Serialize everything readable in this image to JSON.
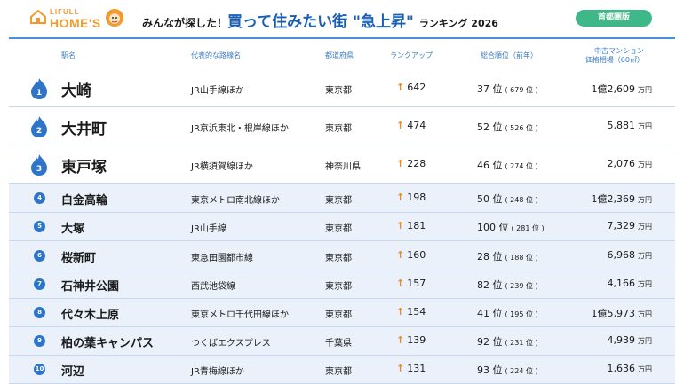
{
  "header": {
    "logo_top": "LIFULL",
    "logo_main": "HOME'S",
    "title_pre": "みんなが探した！",
    "title_main": "買って住みたい街 \"急上昇\"",
    "title_post": "ランキング 2026",
    "region_badge": "首都圏版"
  },
  "columns": {
    "station": "駅名",
    "line": "代表的な路線名",
    "pref": "都道府県",
    "rankup": "ランクアップ",
    "overall": "総合順位（前年）",
    "price_l1": "中古マンション",
    "price_l2": "価格相場（60㎡）"
  },
  "colors": {
    "accent_blue": "#2e74c9",
    "arrow_orange": "#f08a1c",
    "badge_green": "#3fb889",
    "row_tint": "#eaf1fb"
  },
  "rows": [
    {
      "rank": "1",
      "station": "大崎",
      "line": "JR山手線ほか",
      "pref": "東京都",
      "rankup": "642",
      "overall": "37 位",
      "prev": "( 679 位 )",
      "price": "1億2,609",
      "unit": "万円"
    },
    {
      "rank": "2",
      "station": "大井町",
      "line": "JR京浜東北・根岸線ほか",
      "pref": "東京都",
      "rankup": "474",
      "overall": "52 位",
      "prev": "( 526 位 )",
      "price": "5,881",
      "unit": "万円"
    },
    {
      "rank": "3",
      "station": "東戸塚",
      "line": "JR横須賀線ほか",
      "pref": "神奈川県",
      "rankup": "228",
      "overall": "46 位",
      "prev": "( 274 位 )",
      "price": "2,076",
      "unit": "万円"
    },
    {
      "rank": "4",
      "station": "白金高輪",
      "line": "東京メトロ南北線ほか",
      "pref": "東京都",
      "rankup": "198",
      "overall": "50 位",
      "prev": "( 248 位 )",
      "price": "1億2,369",
      "unit": "万円"
    },
    {
      "rank": "5",
      "station": "大塚",
      "line": "JR山手線",
      "pref": "東京都",
      "rankup": "181",
      "overall": "100 位",
      "prev": "( 281 位 )",
      "price": "7,329",
      "unit": "万円"
    },
    {
      "rank": "6",
      "station": "桜新町",
      "line": "東急田園都市線",
      "pref": "東京都",
      "rankup": "160",
      "overall": "28 位",
      "prev": "( 188 位 )",
      "price": "6,968",
      "unit": "万円"
    },
    {
      "rank": "7",
      "station": "石神井公園",
      "line": "西武池袋線",
      "pref": "東京都",
      "rankup": "157",
      "overall": "82 位",
      "prev": "( 239 位 )",
      "price": "4,166",
      "unit": "万円"
    },
    {
      "rank": "8",
      "station": "代々木上原",
      "line": "東京メトロ千代田線ほか",
      "pref": "東京都",
      "rankup": "154",
      "overall": "41 位",
      "prev": "( 195 位 )",
      "price": "1億5,973",
      "unit": "万円"
    },
    {
      "rank": "9",
      "station": "柏の葉キャンパス",
      "line": "つくばエクスプレス",
      "pref": "千葉県",
      "rankup": "139",
      "overall": "92 位",
      "prev": "( 231 位 )",
      "price": "4,939",
      "unit": "万円"
    },
    {
      "rank": "10",
      "station": "河辺",
      "line": "JR青梅線ほか",
      "pref": "東京都",
      "rankup": "131",
      "overall": "93 位",
      "prev": "( 224 位 )",
      "price": "1,636",
      "unit": "万円"
    }
  ]
}
